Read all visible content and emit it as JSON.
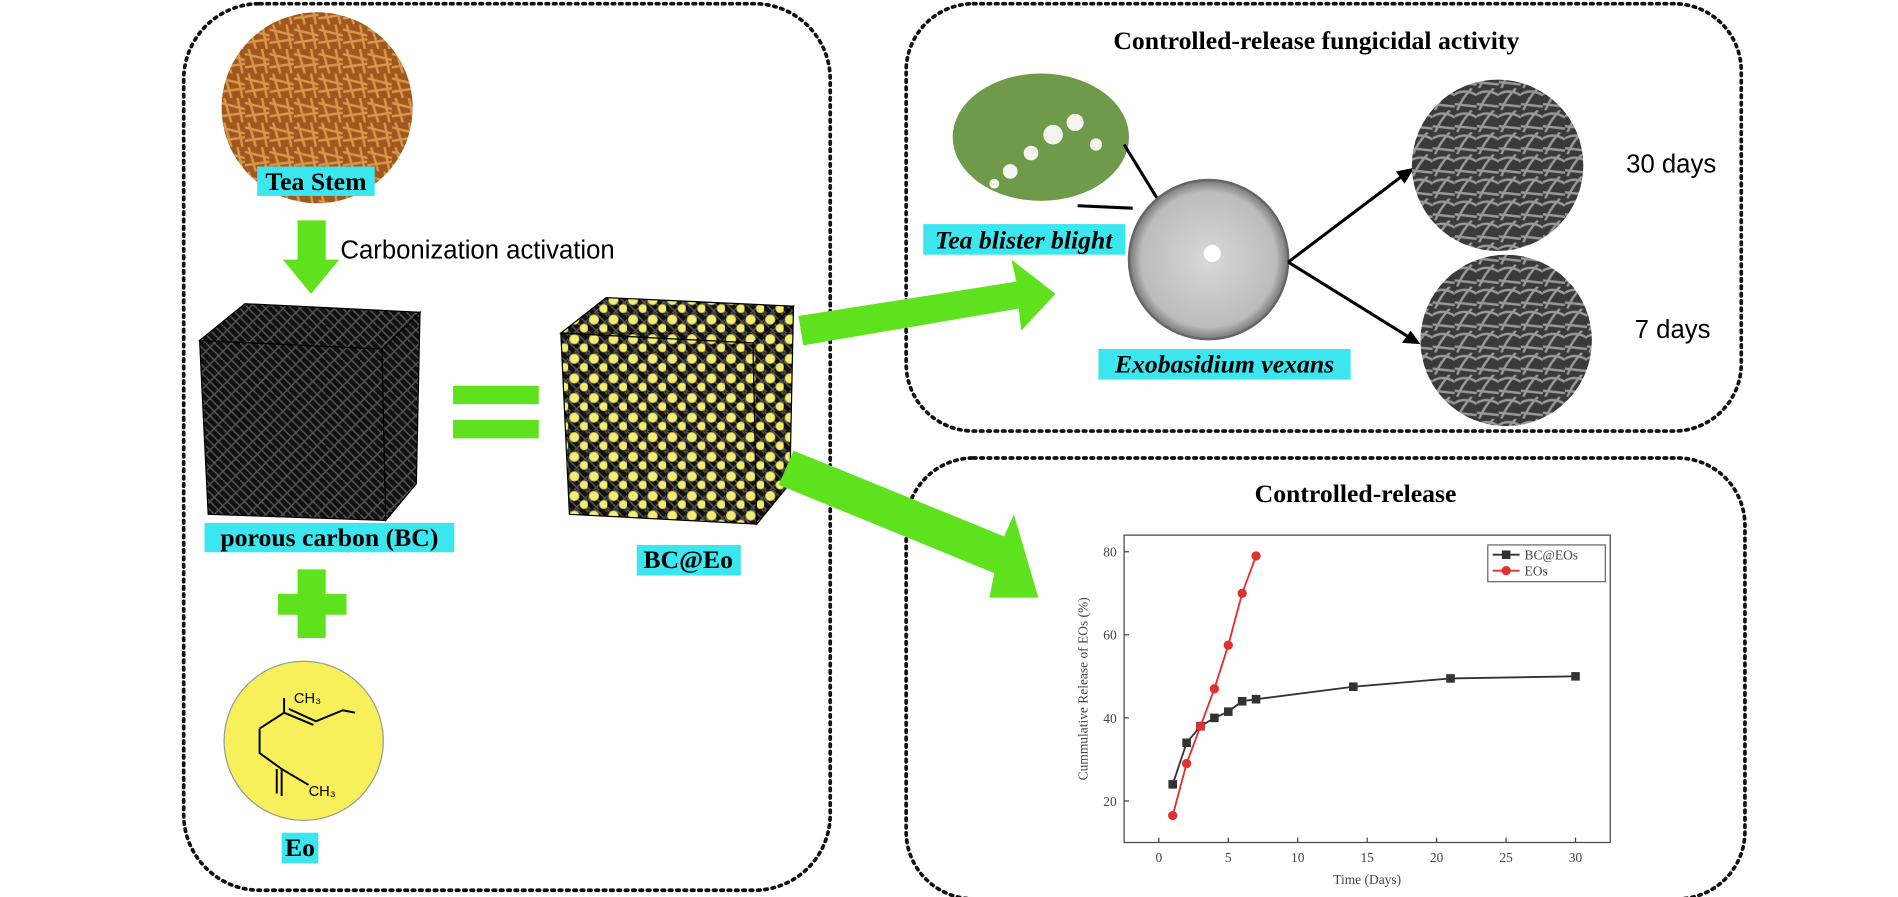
{
  "left_panel": {
    "tea_stem": "Tea Stem",
    "process": "Carbonization activation",
    "porous_carbon": "porous carbon (BC)",
    "composite": "BC@Eo",
    "eo": "Eo",
    "molecule_labels": [
      "CH₃",
      "CH₃"
    ]
  },
  "fungicidal_panel": {
    "title": "Controlled-release fungicidal activity",
    "disease": "Tea blister blight",
    "pathogen": "Exobasidium vexans",
    "times": [
      "30 days",
      "7 days"
    ]
  },
  "release_panel": {
    "title": "Controlled-release"
  },
  "chart_data": {
    "type": "line",
    "xlabel": "Time (Days)",
    "ylabel": "Cummulative Release of EOs (%)",
    "xlim": [
      -2.5,
      32.5
    ],
    "ylim": [
      10,
      84
    ],
    "xticks": [
      0,
      5,
      10,
      15,
      20,
      25,
      30
    ],
    "yticks": [
      20,
      40,
      60,
      80
    ],
    "grid": false,
    "legend": "upper right",
    "series": [
      {
        "name": "BC@EOs",
        "color": "#333333",
        "marker": "square",
        "x": [
          1,
          2,
          3,
          4,
          5,
          6,
          7,
          14,
          21,
          30
        ],
        "values": [
          24,
          34,
          38,
          40,
          41.5,
          44,
          44.5,
          47.5,
          49.5,
          50
        ]
      },
      {
        "name": "EOs",
        "color": "#e03030",
        "marker": "circle",
        "x": [
          1,
          2,
          3,
          4,
          5,
          6,
          7
        ],
        "values": [
          16.5,
          29,
          38,
          47,
          57.5,
          70,
          79
        ]
      }
    ]
  }
}
